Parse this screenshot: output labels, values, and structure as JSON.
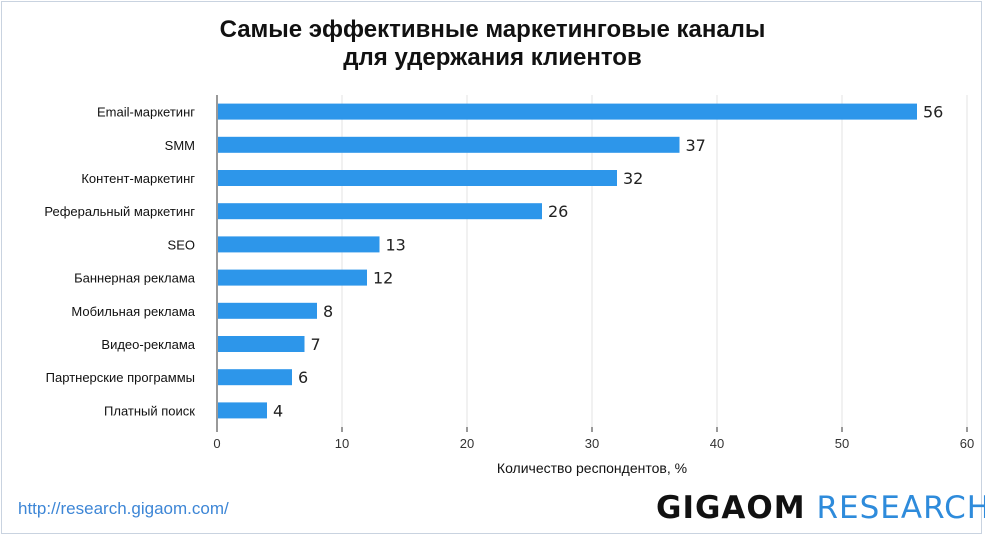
{
  "title_line1": "Самые эффективные маркетинговые каналы",
  "title_line2": "для удержания клиентов",
  "source_url": "http://research.gigaom.com/",
  "logo": {
    "main": "GIGAOM",
    "sub": "RESEARCH"
  },
  "colors": {
    "bar": "#2d96ea",
    "grid": "#e3e3e3",
    "axis": "#333333"
  },
  "chart_data": {
    "type": "bar",
    "orientation": "horizontal",
    "categories": [
      "Email-маркетинг",
      "SMM",
      "Контент-маркетинг",
      "Реферальный маркетинг",
      "SEO",
      "Баннерная реклама",
      "Мобильная реклама",
      "Видео-реклама",
      "Партнерские программы",
      "Платный поиск"
    ],
    "values": [
      56,
      37,
      32,
      26,
      13,
      12,
      8,
      7,
      6,
      4
    ],
    "xlabel": "Количество респондентов, %",
    "ylabel": "",
    "xlim": [
      0,
      60
    ],
    "xticks": [
      0,
      10,
      20,
      30,
      40,
      50,
      60
    ],
    "grid": "vertical",
    "data_labels": true
  }
}
